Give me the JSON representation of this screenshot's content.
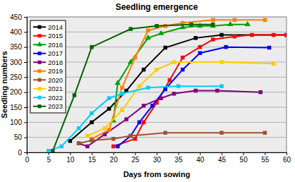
{
  "chart_data": {
    "type": "line",
    "title": "Seedling emergence",
    "x_label": "Days from sowing",
    "y_label": "Seedling numbers",
    "xlim": [
      0,
      60
    ],
    "xticks": [
      0,
      5,
      10,
      15,
      20,
      25,
      30,
      35,
      40,
      45,
      50,
      55,
      60
    ],
    "ylim": [
      0,
      450
    ],
    "yticks": [
      0,
      50,
      100,
      150,
      200,
      250,
      300,
      350,
      400,
      450
    ],
    "grid": "y",
    "legend": "upper left",
    "series": [
      {
        "name": "2014",
        "color": "#000000",
        "marker": "square",
        "x": [
          10,
          15,
          19,
          23,
          27,
          32,
          39,
          45,
          60
        ],
        "values": [
          38,
          100,
          145,
          205,
          275,
          348,
          380,
          390,
          390
        ]
      },
      {
        "name": "2015",
        "color": "#ff0000",
        "marker": "square",
        "x": [
          20,
          25,
          27,
          30,
          33,
          36,
          40,
          43,
          48,
          52,
          57,
          60
        ],
        "values": [
          20,
          45,
          100,
          165,
          240,
          315,
          350,
          375,
          385,
          390,
          390,
          390
        ]
      },
      {
        "name": "2016",
        "color": "#00a000",
        "marker": "triangle",
        "x": [
          20,
          21,
          24,
          28,
          31,
          36,
          40,
          43,
          47,
          51
        ],
        "values": [
          105,
          230,
          300,
          380,
          395,
          415,
          420,
          420,
          425,
          425
        ]
      },
      {
        "name": "2017",
        "color": "#0000ff",
        "marker": "square",
        "x": [
          21,
          24,
          26,
          29,
          32,
          36,
          40,
          46,
          56
        ],
        "values": [
          20,
          55,
          100,
          155,
          210,
          275,
          330,
          350,
          348
        ]
      },
      {
        "name": "2018",
        "color": "#800080",
        "marker": "square",
        "x": [
          12,
          14,
          18,
          23,
          27,
          31,
          34,
          39,
          44,
          54
        ],
        "values": [
          30,
          20,
          60,
          110,
          155,
          180,
          195,
          205,
          205,
          200
        ]
      },
      {
        "name": "2019",
        "color": "#ff8000",
        "marker": "square",
        "x": [
          15,
          19,
          22,
          25,
          28,
          32,
          36,
          43,
          48,
          55
        ],
        "values": [
          45,
          75,
          215,
          315,
          405,
          420,
          430,
          440,
          440,
          440
        ]
      },
      {
        "name": "2020",
        "color": "#a0522d",
        "marker": "square",
        "x": [
          12,
          15,
          20,
          24,
          32,
          45,
          55
        ],
        "values": [
          30,
          40,
          45,
          55,
          65,
          65,
          65
        ]
      },
      {
        "name": "2021",
        "color": "#ffcc00",
        "marker": "square",
        "x": [
          14,
          18,
          22,
          26,
          30,
          34,
          45,
          57
        ],
        "values": [
          55,
          80,
          140,
          220,
          275,
          300,
          300,
          295
        ]
      },
      {
        "name": "2022",
        "color": "#00ccff",
        "marker": "square",
        "x": [
          5,
          8,
          12,
          15,
          19,
          22,
          28,
          35,
          45
        ],
        "values": [
          5,
          20,
          80,
          130,
          180,
          195,
          215,
          220,
          220
        ]
      },
      {
        "name": "2023",
        "color": "#006400",
        "marker": "square",
        "x": [
          6,
          11,
          15,
          24,
          30,
          38,
          43
        ],
        "values": [
          5,
          190,
          350,
          410,
          420,
          425,
          425
        ]
      }
    ]
  }
}
